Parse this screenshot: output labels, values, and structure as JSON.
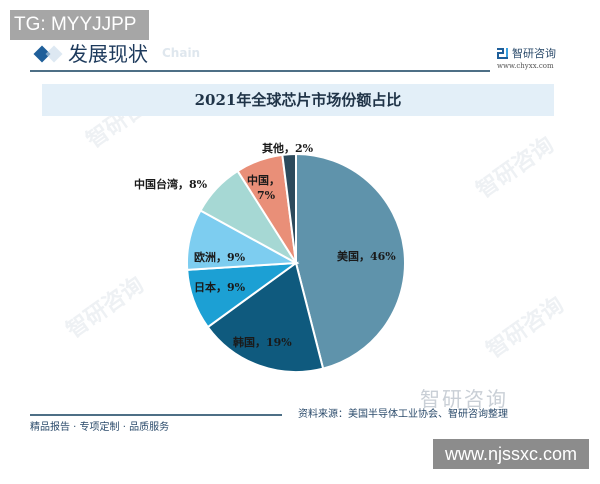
{
  "overlay": {
    "tg_badge": "TG: MYYJJPP",
    "url_badge": "www.njssxc.com"
  },
  "header": {
    "section_title": "发展现状",
    "section_ghost": "Chain",
    "brand_name": "智研咨询",
    "brand_url": "www.chyxx.com"
  },
  "footer": {
    "left_text": "精品报告 · 专项定制 · 品质服务",
    "source_text": "资料来源：美国半导体工业协会、智研咨询整理",
    "logo_text": "智研咨询"
  },
  "watermark": "智研咨询",
  "chart_data": {
    "type": "pie",
    "title": "2021年全球芯片市场份额占比",
    "categories": [
      "美国",
      "韩国",
      "日本",
      "欧洲",
      "中国台湾",
      "中国",
      "其他"
    ],
    "values": [
      46,
      19,
      9,
      9,
      8,
      7,
      2
    ],
    "unit": "%",
    "colors": [
      "#5f93ab",
      "#0f5a7e",
      "#1ca0d4",
      "#7dcdf0",
      "#a6d8d4",
      "#e98f78",
      "#2c4a5c"
    ],
    "labels": [
      "美国，46%",
      "韩国，19%",
      "日本，9%",
      "欧洲，9%",
      "中国台湾，8%",
      "中国，\n7%",
      "其他，2%"
    ],
    "start_angle": "12 o'clock, clockwise",
    "legend": "none (data labels on/near slices)"
  }
}
